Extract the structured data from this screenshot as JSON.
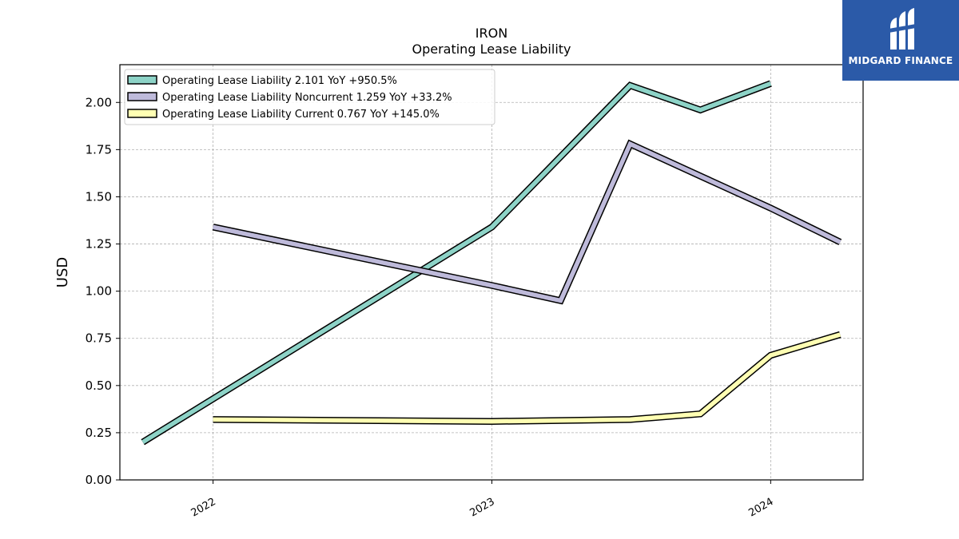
{
  "brand": {
    "name": "MIDGARD FINANCE",
    "background": "#2b5aa8"
  },
  "chart_data": {
    "type": "line",
    "title": "IRON",
    "subtitle": "Operating Lease Liability",
    "xlabel": "",
    "ylabel": "USD",
    "ylim": [
      0,
      2.2
    ],
    "xlim": [
      "2021-09-01",
      "2024-05-01"
    ],
    "y_ticks": [
      "0.00",
      "0.25",
      "0.50",
      "0.75",
      "1.00",
      "1.25",
      "1.50",
      "1.75",
      "2.00"
    ],
    "x_ticks": [
      {
        "date": "2022-01-01",
        "label": "2022"
      },
      {
        "date": "2023-01-01",
        "label": "2023"
      },
      {
        "date": "2024-01-01",
        "label": "2024"
      }
    ],
    "grid": true,
    "legend_position": "top-left",
    "series": [
      {
        "name": "Operating Lease Liability",
        "legend_label": "Operating Lease Liability  2.101 YoY +950.5%",
        "color": "#8dd3c7",
        "points": [
          {
            "x": "2021-10-01",
            "y": 0.2
          },
          {
            "x": "2023-01-01",
            "y": 1.34
          },
          {
            "x": "2023-07-01",
            "y": 2.09
          },
          {
            "x": "2023-10-01",
            "y": 1.96
          },
          {
            "x": "2024-01-01",
            "y": 2.1
          }
        ]
      },
      {
        "name": "Operating Lease Liability Noncurrent",
        "legend_label": "Operating Lease Liability Noncurrent  1.259 YoY +33.2%",
        "color": "#bebada",
        "points": [
          {
            "x": "2022-01-01",
            "y": 1.34
          },
          {
            "x": "2023-01-01",
            "y": 1.03
          },
          {
            "x": "2023-04-01",
            "y": 0.95
          },
          {
            "x": "2023-07-01",
            "y": 1.78
          },
          {
            "x": "2023-10-01",
            "y": 1.61
          },
          {
            "x": "2024-01-01",
            "y": 1.44
          },
          {
            "x": "2024-04-01",
            "y": 1.26
          }
        ]
      },
      {
        "name": "Operating Lease Liability Current",
        "legend_label": "Operating Lease Liability Current  0.767 YoY +145.0%",
        "color": "#ffffb3",
        "points": [
          {
            "x": "2022-01-01",
            "y": 0.32
          },
          {
            "x": "2023-01-01",
            "y": 0.31
          },
          {
            "x": "2023-07-01",
            "y": 0.32
          },
          {
            "x": "2023-10-01",
            "y": 0.35
          },
          {
            "x": "2024-01-01",
            "y": 0.66
          },
          {
            "x": "2024-04-01",
            "y": 0.77
          }
        ]
      }
    ]
  }
}
